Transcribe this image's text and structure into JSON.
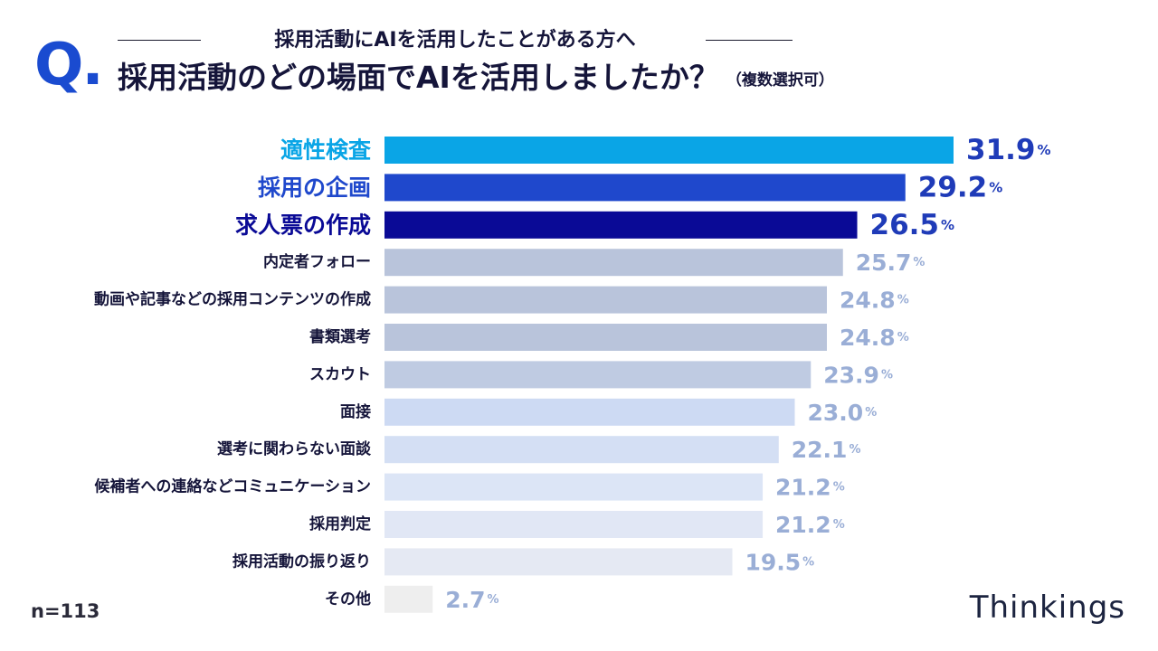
{
  "header": {
    "q_mark": "Q.",
    "subtitle": "採用活動にAIを活用したことがある方へ",
    "title": "採用活動のどの場面でAIを活用しましたか？",
    "title_note": "（複数選択可）"
  },
  "footer": {
    "sample_size": "n=113",
    "brand": "Thinkings"
  },
  "chart_data": {
    "type": "bar",
    "orientation": "horizontal",
    "unit": "%",
    "xlim": [
      0,
      35
    ],
    "grid": false,
    "categories": [
      "適性検査",
      "採用の企画",
      "求人票の作成",
      "内定者フォロー",
      "動画や記事などの採用コンテンツの作成",
      "書類選考",
      "スカウト",
      "面接",
      "選考に関わらない面談",
      "候補者への連絡などコミュニケーション",
      "採用判定",
      "採用活動の振り返り",
      "その他"
    ],
    "values": [
      31.9,
      29.2,
      26.5,
      25.7,
      24.8,
      24.8,
      23.9,
      23.0,
      22.1,
      21.2,
      21.2,
      19.5,
      2.7
    ],
    "value_labels": [
      "31.9",
      "29.2",
      "26.5",
      "25.7",
      "24.8",
      "24.8",
      "23.9",
      "23.0",
      "22.1",
      "21.2",
      "21.2",
      "19.5",
      "2.7"
    ],
    "highlight_top": 3,
    "bar_colors": [
      "#0aa5e6",
      "#1f48cc",
      "#0a0a96",
      "#b9c4db",
      "#b9c4db",
      "#b9c4db",
      "#bfcbe2",
      "#cddaf3",
      "#d4dff4",
      "#dce5f6",
      "#e1e7f5",
      "#e5e9f3",
      "#eeeeee"
    ],
    "label_colors": [
      "#0aa5e6",
      "#1f48cc",
      "#0a0a96",
      "#15153a",
      "#15153a",
      "#15153a",
      "#15153a",
      "#15153a",
      "#15153a",
      "#15153a",
      "#15153a",
      "#15153a",
      "#15153a"
    ],
    "value_colors": [
      "#1f3bb8",
      "#1f3bb8",
      "#1f3bb8",
      "#9aaed6",
      "#9aaed6",
      "#9aaed6",
      "#9aaed6",
      "#9aaed6",
      "#9aaed6",
      "#9aaed6",
      "#9aaed6",
      "#9aaed6",
      "#9aaed6"
    ]
  }
}
